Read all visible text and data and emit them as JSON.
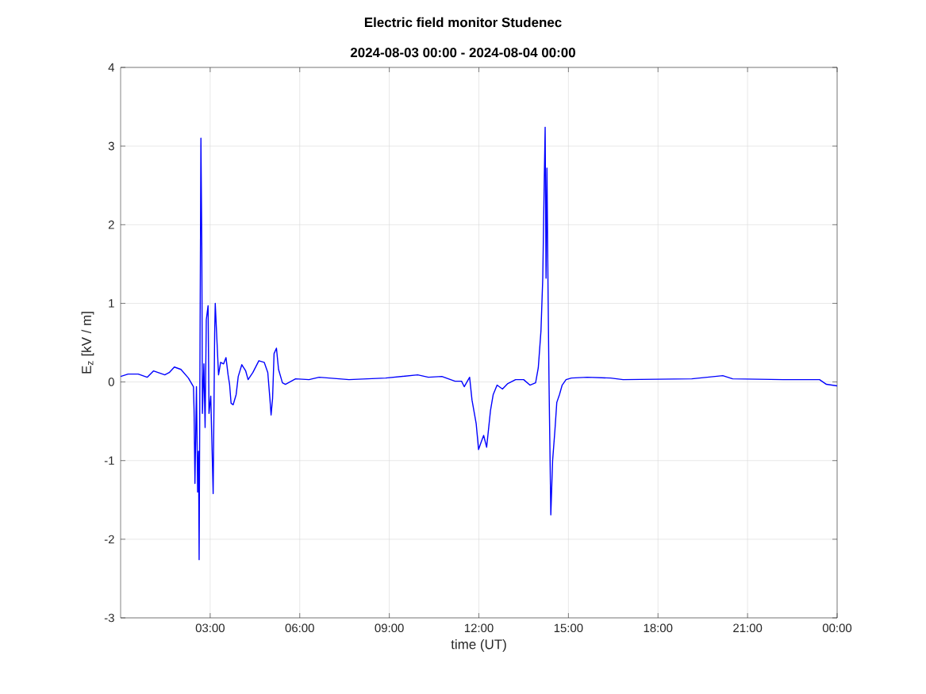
{
  "chart_data": {
    "type": "line",
    "title": "Electric field monitor Studenec",
    "subtitle": "2024-08-03 00:00 - 2024-08-04 00:00",
    "xlabel": "time (UT)",
    "ylabel": "E$_{z}$ [kV / m]",
    "xlim": [
      0,
      24
    ],
    "xticks": [
      {
        "value": 3,
        "label": "03:00"
      },
      {
        "value": 6,
        "label": "06:00"
      },
      {
        "value": 9,
        "label": "09:00"
      },
      {
        "value": 12,
        "label": "12:00"
      },
      {
        "value": 15,
        "label": "15:00"
      },
      {
        "value": 18,
        "label": "18:00"
      },
      {
        "value": 21,
        "label": "21:00"
      },
      {
        "value": 24,
        "label": "00:00"
      }
    ],
    "ylim": [
      -3,
      4
    ],
    "yticks": [
      -3,
      -2,
      -1,
      0,
      1,
      2,
      3,
      4
    ],
    "grid": true,
    "line_style": "solid",
    "series": [
      {
        "color": "#0000ff",
        "x": [
          0,
          0.25,
          0.59,
          0.89,
          1.1,
          1.48,
          1.63,
          1.8,
          2.02,
          2.27,
          2.44,
          2.46,
          2.49,
          2.54,
          2.58,
          2.61,
          2.63,
          2.66,
          2.69,
          2.72,
          2.74,
          2.79,
          2.83,
          2.87,
          2.93,
          2.96,
          3.02,
          3.1,
          3.15,
          3.17,
          3.23,
          3.28,
          3.35,
          3.45,
          3.53,
          3.6,
          3.65,
          3.7,
          3.77,
          3.87,
          3.94,
          4.06,
          4.19,
          4.27,
          4.43,
          4.63,
          4.81,
          4.93,
          5.0,
          5.04,
          5.09,
          5.14,
          5.22,
          5.29,
          5.42,
          5.52,
          5.86,
          6.31,
          6.65,
          7.65,
          8.88,
          9.95,
          10.31,
          10.76,
          11.2,
          11.42,
          11.51,
          11.69,
          11.77,
          11.91,
          11.99,
          12.08,
          12.16,
          12.26,
          12.39,
          12.48,
          12.61,
          12.79,
          12.97,
          13.23,
          13.5,
          13.71,
          13.9,
          13.99,
          14.08,
          14.14,
          14.19,
          14.22,
          14.25,
          14.28,
          14.32,
          14.35,
          14.38,
          14.41,
          14.47,
          14.55,
          14.61,
          14.7,
          14.79,
          14.92,
          15.1,
          15.63,
          16.41,
          16.83,
          19.13,
          20.17,
          20.5,
          22.19,
          23.41,
          23.64,
          24.0
        ],
        "values": [
          0.07,
          0.1,
          0.1,
          0.06,
          0.14,
          0.09,
          0.12,
          0.19,
          0.16,
          0.05,
          -0.06,
          -0.36,
          -1.29,
          -0.06,
          -1.4,
          -0.88,
          -2.26,
          0.46,
          3.1,
          1.69,
          -0.4,
          0.23,
          -0.58,
          0.79,
          0.97,
          -0.4,
          -0.18,
          -1.42,
          0.61,
          1.0,
          0.5,
          0.09,
          0.25,
          0.23,
          0.31,
          0.09,
          -0.03,
          -0.27,
          -0.29,
          -0.16,
          0.07,
          0.22,
          0.14,
          0.03,
          0.12,
          0.27,
          0.25,
          0.12,
          -0.21,
          -0.42,
          -0.21,
          0.36,
          0.43,
          0.16,
          -0.01,
          -0.03,
          0.04,
          0.03,
          0.06,
          0.03,
          0.05,
          0.09,
          0.06,
          0.07,
          0.01,
          0.01,
          -0.06,
          0.06,
          -0.23,
          -0.53,
          -0.86,
          -0.76,
          -0.68,
          -0.83,
          -0.36,
          -0.16,
          -0.04,
          -0.09,
          -0.02,
          0.03,
          0.03,
          -0.04,
          -0.01,
          0.18,
          0.65,
          1.32,
          2.57,
          3.24,
          1.32,
          2.72,
          1.05,
          -0.02,
          -0.86,
          -1.69,
          -1.0,
          -0.6,
          -0.26,
          -0.16,
          -0.04,
          0.03,
          0.05,
          0.06,
          0.05,
          0.03,
          0.04,
          0.08,
          0.04,
          0.03,
          0.03,
          -0.03,
          -0.05
        ]
      }
    ]
  }
}
